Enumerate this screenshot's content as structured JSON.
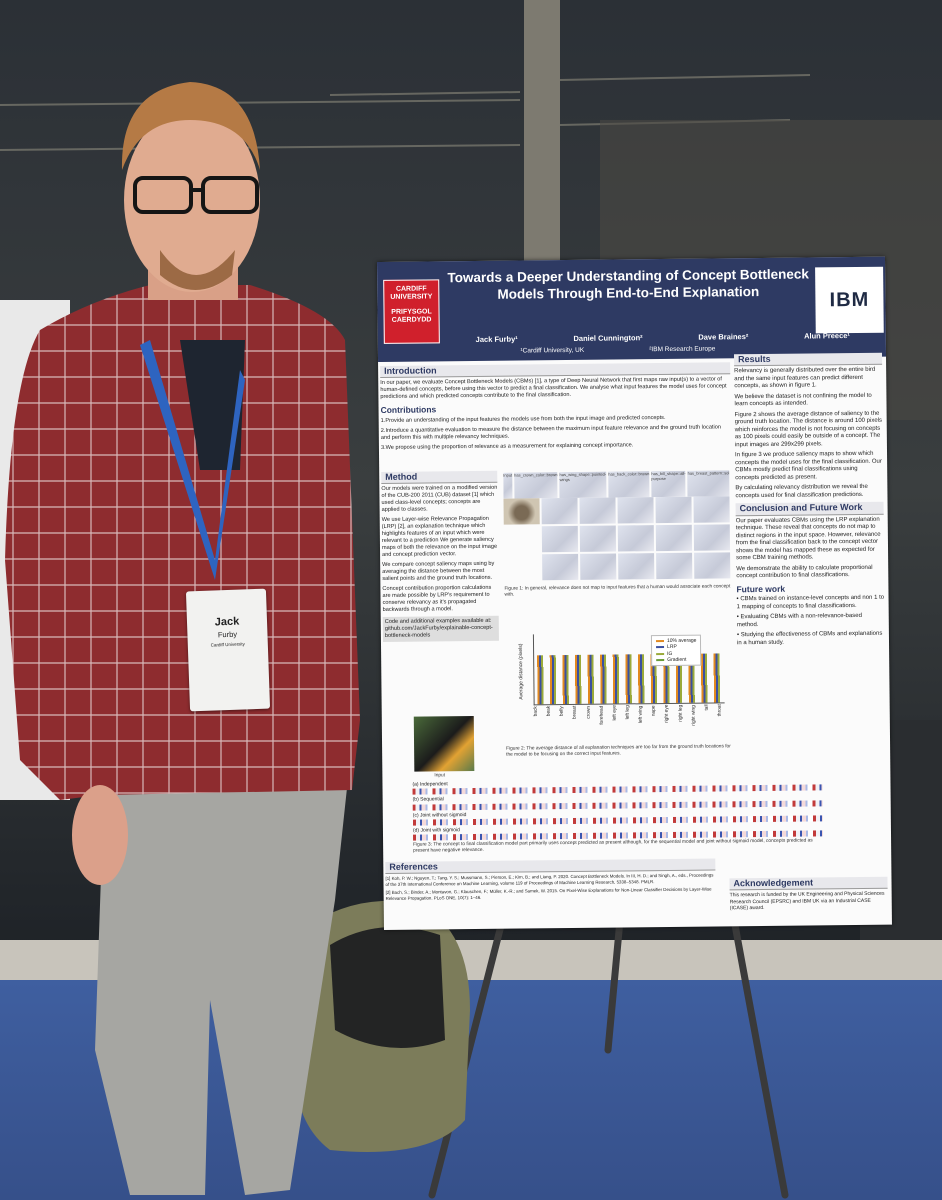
{
  "badge": {
    "first_name": "Jack",
    "last_name": "Furby",
    "org": "Cardiff University"
  },
  "poster": {
    "logo_cardiff": [
      "CARDIFF",
      "UNIVERSITY",
      "PRIFYSGOL",
      "CAERDYDD"
    ],
    "logo_ibm": "IBM",
    "title": "Towards a Deeper Understanding of Concept Bottleneck Models Through End-to-End Explanation",
    "authors": [
      "Jack Furby¹",
      "Daniel Cunnington²",
      "Dave Braines²",
      "Alun Preece¹"
    ],
    "affiliations": [
      "¹Cardiff University, UK",
      "²IBM Research Europe"
    ],
    "introduction": {
      "heading": "Introduction",
      "text": "In our paper, we evaluate Concept Bottleneck Models (CBMs) [1], a type of Deep Neural Network that first maps raw input(s) to a vector of human-defined concepts, before using this vector to predict a final classification. We analyse what input features the model uses for concept predictions and which predicted concepts contribute to the final classification.",
      "contributions_heading": "Contributions",
      "contributions": [
        "1.Provide an understanding of the input features the models use from both the input image and predicted concepts.",
        "2.Introduce a quantitative evaluation to measure the distance between the maximum input feature relevance and the ground truth location and perform this with multiple relevancy techniques.",
        "3.We propose using the proportion of relevance as a measurement for explaining concept importance."
      ]
    },
    "method": {
      "heading": "Method",
      "paragraphs": [
        "Our models were trained on a modified version of the CUB-200 2011 (CUB) dataset [1] which used class-level concepts; concepts are applied to classes.",
        "We use Layer-wise Relevance Propagation (LRP) [2], an explanation technique which highlights features of an input which were relevant to a prediction We generate saliency maps of both the relevance on the input image and concept prediction vector.",
        "We compare concept saliency maps using by averaging the distance between the most salient points and the ground truth locations.",
        "Concept contribution proportion calculations are made possible by LRP's requirement to conserve relevancy as it's propagated backwards through a model."
      ],
      "code_note": "Code and additional examples available at: github.com/JackFurby/explainable-concept-bottleneck-models"
    },
    "figure1": {
      "columns": [
        "Input",
        "has_crown_color::brown",
        "has_wing_shape::pointed-wings",
        "has_back_color::brown",
        "has_bill_shape::all-purpose",
        "has_breast_pattern::solid"
      ],
      "caption": "Figure 1: In general, relevance does not map to input features that a human would associate each concept with."
    },
    "figure2": {
      "ylabel": "Average distance (pixels)",
      "legend": [
        "10% average",
        "LRP",
        "IG",
        "Gradient"
      ],
      "categories": [
        "back",
        "beak",
        "belly",
        "breast",
        "crown",
        "forehead",
        "left eye",
        "left leg",
        "left wing",
        "nape",
        "right eye",
        "right leg",
        "right wing",
        "tail",
        "throat"
      ],
      "caption": "Figure 2: The average distance of all explanation techniques are too far from the ground truth locations for the model to be focusing on the correct input features."
    },
    "figure3": {
      "input_label": "Input",
      "rows": [
        "(a) Independent",
        "(b) Sequential",
        "(c) Joint without sigmoid",
        "(d) Joint with sigmoid"
      ],
      "caption": "Figure 3: The concept to final classification model part primarily uses concept predicted as present although, for the sequential model and joint without sigmoid model, concepts predicted as present have negative relevance."
    },
    "results": {
      "heading": "Results",
      "paragraphs": [
        "Relevancy is generally distributed over the entire bird and the same input features can predict different concepts, as shown in figure 1.",
        "We believe the dataset is not confining the model to learn concepts as intended.",
        "Figure 2 shows the average distance of saliency to the ground truth location. The distance is around 100 pixels which reinforces the model is not focusing on concepts as 100 pixels could easily be outside of a concept. The input images are 299x299 pixels.",
        "In figure 3 we produce saliency maps to show which concepts the model uses for the final classification. Our CBMs mostly predict final classifications using concepts predicted as present.",
        "By calculating relevancy distribution we reveal the concepts used for final classification predictions."
      ]
    },
    "conclusion": {
      "heading": "Conclusion and Future Work",
      "paragraphs": [
        "Our paper evaluates CBMs using the LRP explanation technique. These reveal that concepts do not map to distinct regions in the input space. However, relevance from the final classification back to the concept vector shows the model has mapped these as expected for some CBM training methods.",
        "We demonstrate the ability to calculate proportional concept contribution to final classifications."
      ],
      "future_heading": "Future work",
      "future_items": [
        "• CBMs trained on instance-level concepts and non 1 to 1 mapping of concepts to final classifications.",
        "• Evaluating CBMs with a non-relevance-based method.",
        "• Studying the effectiveness of CBMs and explanations in a human study."
      ]
    },
    "references": {
      "heading": "References",
      "items": [
        "[1] Koh, P. W.; Nguyen, T.; Tang, Y. S.; Mussmann, S.; Pierson, E.; Kim, B.; and Liang, P. 2020. Concept Bottleneck Models. In III, H. D.; and Singh, A., eds., Proceedings of the 37th International Conference on Machine Learning, volume 119 of Proceedings of Machine Learning Research, 5338–5348. PMLR.",
        "[2] Bach, S.; Binder, A.; Montavon, G.; Klauschen, F.; Müller, K.-R.; and Samek, W. 2015. On Pixel-Wise Explanations for Non-Linear Classifier Decisions by Layer-Wise Relevance Propagation. PLoS ONE, 10(7): 1–46."
      ]
    },
    "acknowledgement": {
      "heading": "Acknowledgement",
      "text": "This research is funded by the UK Engineering and Physical Sciences Research Council (EPSRC) and IBM UK via an Industrial CASE (ICASE) award."
    }
  }
}
